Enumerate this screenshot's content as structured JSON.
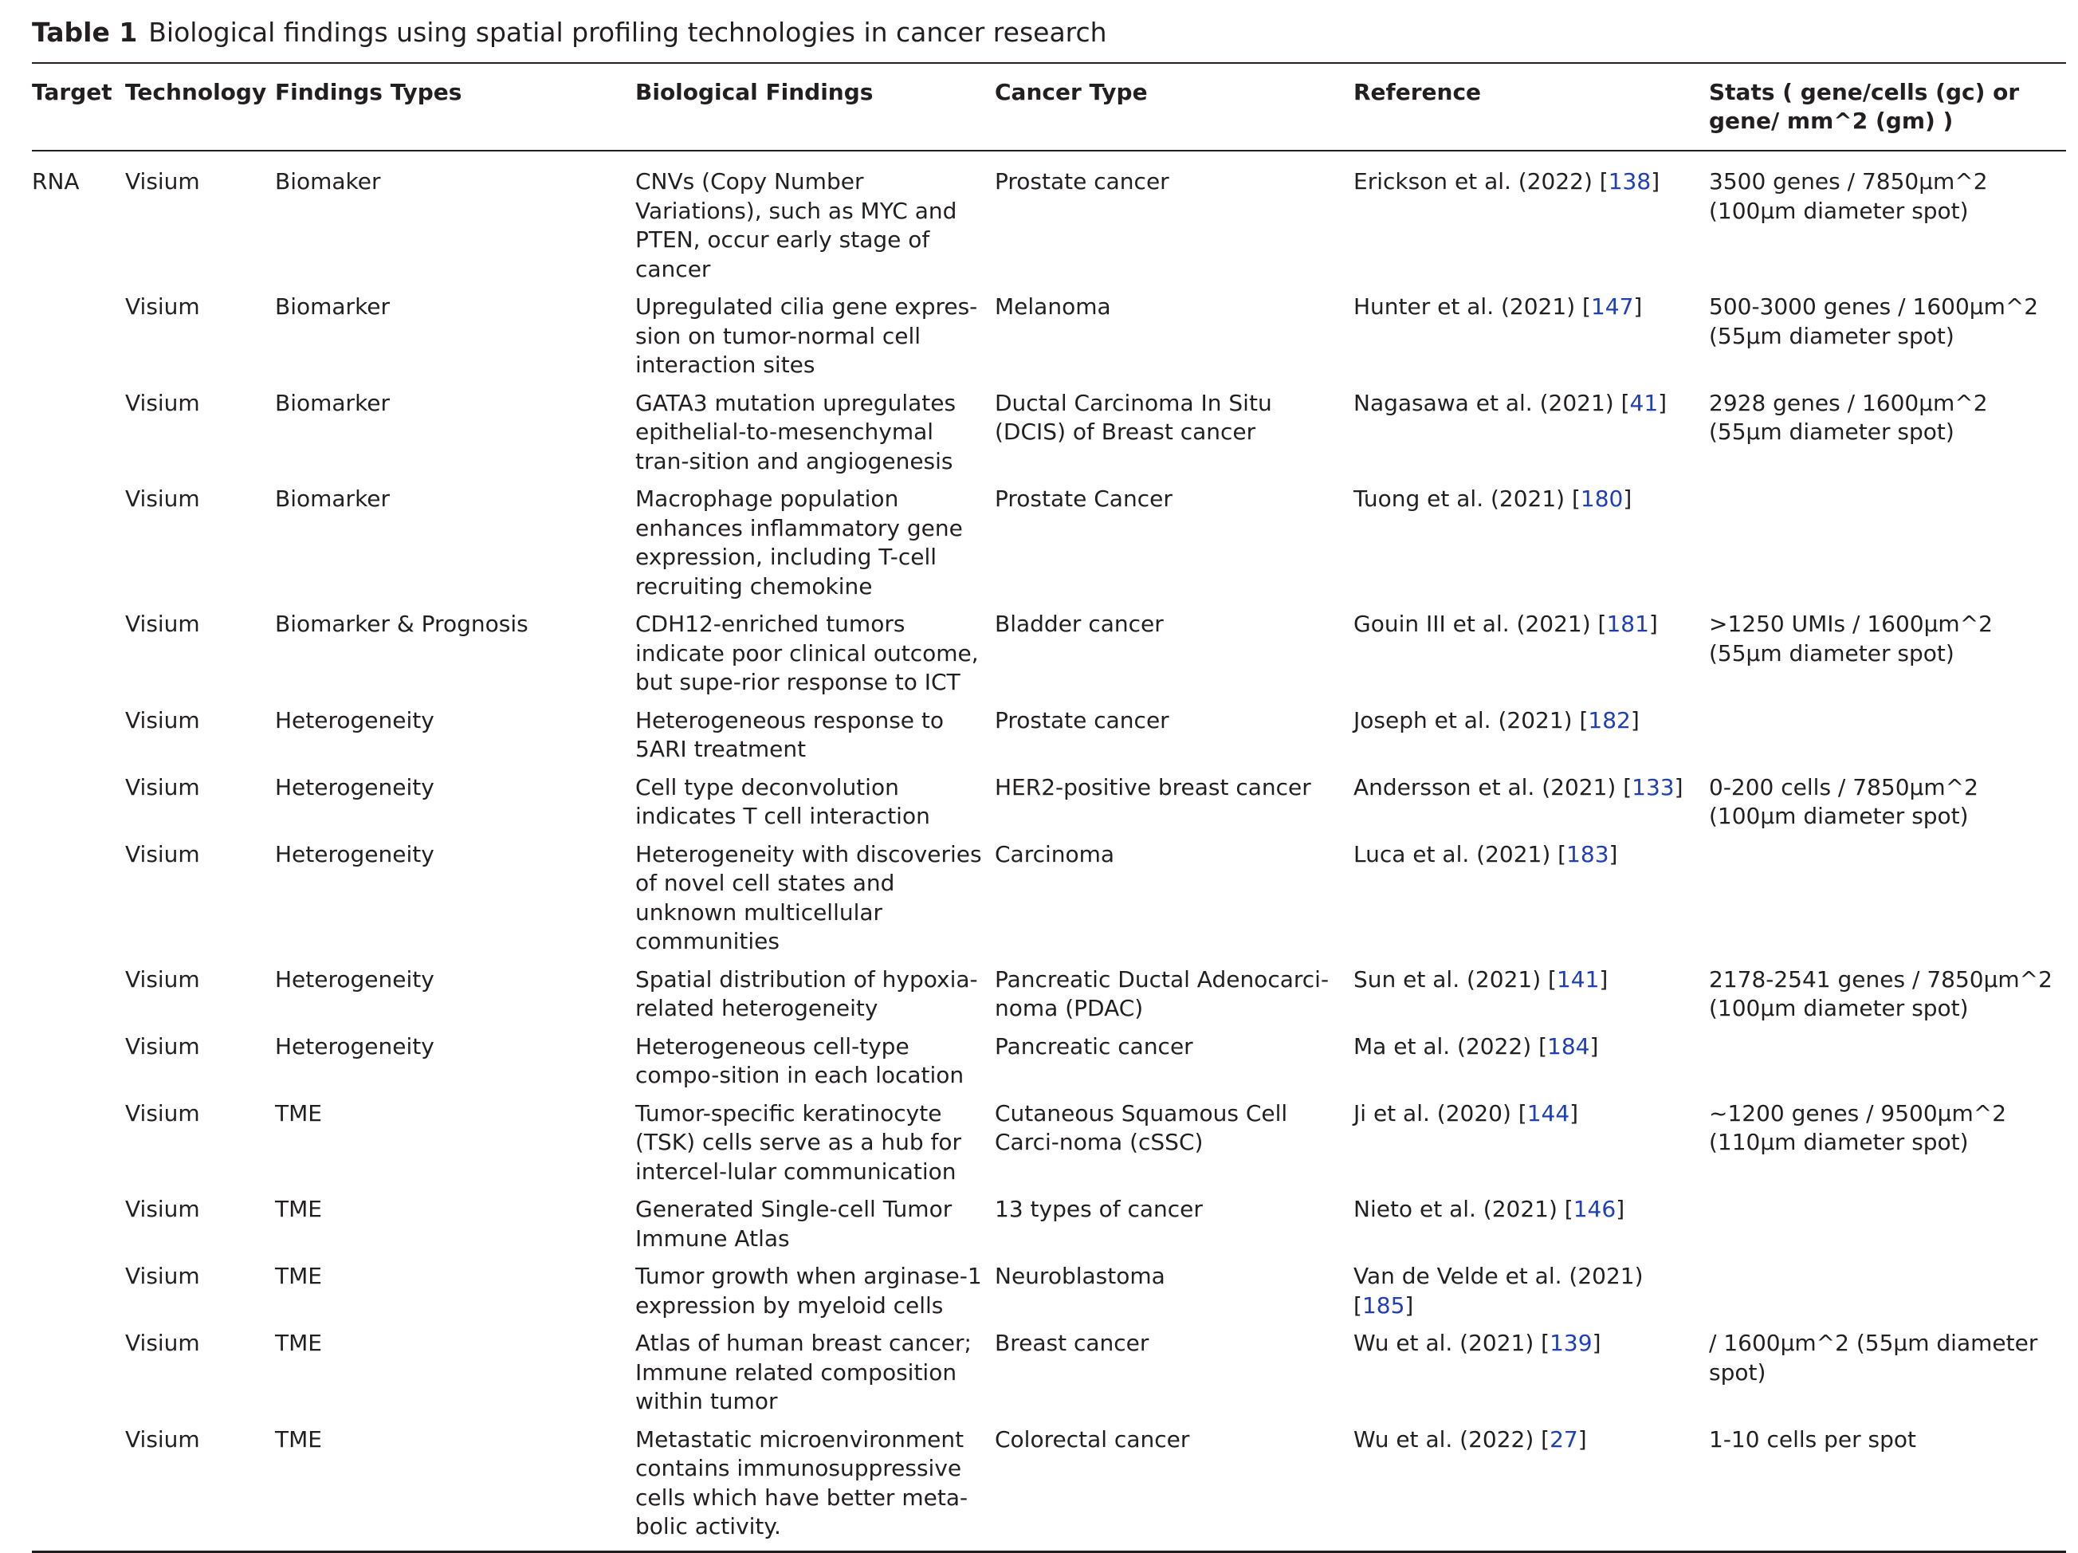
{
  "caption": {
    "label": "Table 1",
    "text": "Biological findings using spatial profiling technologies in cancer research"
  },
  "columns": [
    "Target",
    "Technology",
    "Findings Types",
    "Biological Findings",
    "Cancer Type",
    "Reference",
    "Stats ( gene/cells (gc) or gene/ mm^2 (gm) )"
  ],
  "rows": [
    {
      "target": "RNA",
      "technology": "Visium",
      "findings_type": "Biomaker",
      "finding": "CNVs (Copy Number Variations), such as MYC and PTEN, occur early stage of cancer",
      "cancer_type": "Prostate cancer",
      "ref_text": "Erickson et al. (2022) [",
      "ref_num": "138",
      "ref_close": "]",
      "stats": "3500 genes / 7850µm^2 (100µm diameter spot)"
    },
    {
      "target": "",
      "technology": "Visium",
      "findings_type": "Biomarker",
      "finding": "Upregulated cilia gene expres-sion on tumor-normal cell interaction sites",
      "cancer_type": "Melanoma",
      "ref_text": "Hunter et al. (2021) [",
      "ref_num": "147",
      "ref_close": "]",
      "stats": "500-3000 genes / 1600µm^2 (55µm diameter spot)"
    },
    {
      "target": "",
      "technology": "Visium",
      "findings_type": "Biomarker",
      "finding": "GATA3 mutation upregulates epithelial-to-mesenchymal tran-sition and angiogenesis",
      "cancer_type": "Ductal Carcinoma In Situ (DCIS) of Breast cancer",
      "ref_text": "Nagasawa et al. (2021) [",
      "ref_num": "41",
      "ref_close": "]",
      "stats": "2928 genes / 1600µm^2 (55µm diameter spot)"
    },
    {
      "target": "",
      "technology": "Visium",
      "findings_type": "Biomarker",
      "finding": "Macrophage population enhances inflammatory gene expression, including T-cell recruiting chemokine",
      "cancer_type": "Prostate Cancer",
      "ref_text": "Tuong et al. (2021) [",
      "ref_num": "180",
      "ref_close": "]",
      "stats": ""
    },
    {
      "target": "",
      "technology": "Visium",
      "findings_type": "Biomarker & Prognosis",
      "finding": "CDH12-enriched tumors indicate poor clinical outcome, but supe-rior response to ICT",
      "cancer_type": "Bladder cancer",
      "ref_text": "Gouin III et al. (2021) [",
      "ref_num": "181",
      "ref_close": "]",
      "stats": ">1250 UMIs / 1600µm^2 (55µm diameter spot)"
    },
    {
      "target": "",
      "technology": "Visium",
      "findings_type": "Heterogeneity",
      "finding": "Heterogeneous response to 5ARI treatment",
      "cancer_type": "Prostate cancer",
      "ref_text": "Joseph et al. (2021) [",
      "ref_num": "182",
      "ref_close": "]",
      "stats": ""
    },
    {
      "target": "",
      "technology": "Visium",
      "findings_type": "Heterogeneity",
      "finding": "Cell type deconvolution indicates T cell interaction",
      "cancer_type": "HER2-positive breast cancer",
      "ref_text": "Andersson et al. (2021) [",
      "ref_num": "133",
      "ref_close": "]",
      "stats": "0-200 cells / 7850µm^2 (100µm diameter spot)"
    },
    {
      "target": "",
      "technology": "Visium",
      "findings_type": "Heterogeneity",
      "finding": "Heterogeneity with discoveries of novel cell states and unknown multicellular communities",
      "cancer_type": "Carcinoma",
      "ref_text": "Luca et al. (2021) [",
      "ref_num": "183",
      "ref_close": "]",
      "stats": ""
    },
    {
      "target": "",
      "technology": "Visium",
      "findings_type": "Heterogeneity",
      "finding": "Spatial distribution of hypoxia-related heterogeneity",
      "cancer_type": "Pancreatic Ductal Adenocarci-noma (PDAC)",
      "ref_text": "Sun et al. (2021) [",
      "ref_num": "141",
      "ref_close": "]",
      "stats": "2178-2541 genes / 7850µm^2 (100µm diameter spot)"
    },
    {
      "target": "",
      "technology": "Visium",
      "findings_type": "Heterogeneity",
      "finding": "Heterogeneous cell-type compo-sition in each location",
      "cancer_type": "Pancreatic cancer",
      "ref_text": "Ma et al. (2022) [",
      "ref_num": "184",
      "ref_close": "]",
      "stats": ""
    },
    {
      "target": "",
      "technology": "Visium",
      "findings_type": "TME",
      "finding": "Tumor-specific keratinocyte (TSK) cells serve as a hub for intercel-lular communication",
      "cancer_type": "Cutaneous Squamous Cell Carci-noma (cSSC)",
      "ref_text": "Ji et al. (2020) [",
      "ref_num": "144",
      "ref_close": "]",
      "stats": "~1200 genes / 9500µm^2 (110µm diameter spot)"
    },
    {
      "target": "",
      "technology": "Visium",
      "findings_type": "TME",
      "finding": "Generated Single-cell Tumor Immune Atlas",
      "cancer_type": "13 types of cancer",
      "ref_text": "Nieto et al. (2021) [",
      "ref_num": "146",
      "ref_close": "]",
      "stats": ""
    },
    {
      "target": "",
      "technology": "Visium",
      "findings_type": "TME",
      "finding": "Tumor growth when arginase-1 expression by myeloid cells",
      "cancer_type": "Neuroblastoma",
      "ref_text": "Van de Velde et al. (2021) [",
      "ref_num": "185",
      "ref_close": "]",
      "stats": ""
    },
    {
      "target": "",
      "technology": "Visium",
      "findings_type": "TME",
      "finding": "Atlas of human breast cancer; Immune related composition within tumor",
      "cancer_type": "Breast cancer",
      "ref_text": "Wu et al. (2021) [",
      "ref_num": "139",
      "ref_close": "]",
      "stats": "/ 1600µm^2 (55µm diameter spot)"
    },
    {
      "target": "",
      "technology": "Visium",
      "findings_type": "TME",
      "finding": "Metastatic microenvironment contains immunosuppressive cells which have better meta-bolic activity.",
      "cancer_type": "Colorectal cancer",
      "ref_text": "Wu et al. (2022) [",
      "ref_num": "27",
      "ref_close": "]",
      "stats": "1-10 cells per spot"
    }
  ]
}
